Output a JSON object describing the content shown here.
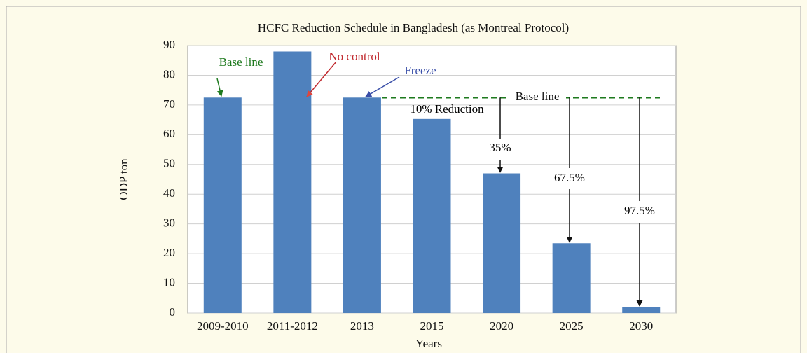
{
  "chart_data": {
    "type": "bar",
    "title": "HCFC Reduction Schedule in Bangladesh (as Montreal Protocol)",
    "xlabel": "Years",
    "ylabel": "ODP ton",
    "categories": [
      "2009-2010",
      "2011-2012",
      "2013",
      "2015",
      "2020",
      "2025",
      "2030"
    ],
    "values": [
      72.5,
      88,
      72.5,
      65.3,
      47,
      23.5,
      2
    ],
    "color": "#4f81bd",
    "ylim": [
      0,
      90
    ],
    "yticks": [
      0,
      10,
      20,
      30,
      40,
      50,
      60,
      70,
      80,
      90
    ],
    "grid": true,
    "baseline": {
      "value": 72.5,
      "label": "Base line",
      "color": "#1e7a1e"
    },
    "annotations": [
      {
        "text": "Base line",
        "color": "#1e7a1e"
      },
      {
        "text": "No control",
        "color": "#c0282d"
      },
      {
        "text": "Freeze",
        "color": "#3a4fa8"
      },
      {
        "text": "10% Reduction",
        "color": "#000000"
      },
      {
        "text": "35%",
        "color": "#000000"
      },
      {
        "text": "67.5%",
        "color": "#000000"
      },
      {
        "text": "97.5%",
        "color": "#000000"
      }
    ]
  }
}
